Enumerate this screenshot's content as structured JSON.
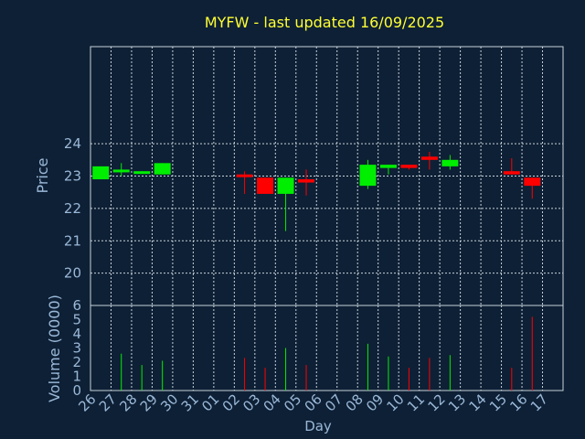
{
  "chart_data": {
    "type": "candlestick",
    "title": "MYFW - last updated 16/09/2025",
    "xlabel": "Day",
    "x": [
      "26",
      "27",
      "28",
      "29",
      "30",
      "31",
      "01",
      "02",
      "03",
      "04",
      "05",
      "06",
      "07",
      "08",
      "09",
      "10",
      "11",
      "12",
      "13",
      "14",
      "15",
      "16",
      "17"
    ],
    "price_panel": {
      "ylabel": "Price",
      "ylim": [
        19,
        27
      ],
      "yticks": [
        20,
        21,
        22,
        23,
        24
      ],
      "grid": true,
      "candles": [
        {
          "day": "26",
          "open": 22.9,
          "high": 23.3,
          "low": 22.9,
          "close": 23.3
        },
        {
          "day": "27",
          "open": 23.15,
          "high": 23.4,
          "low": 23.0,
          "close": 23.2
        },
        {
          "day": "28",
          "open": 23.1,
          "high": 23.15,
          "low": 23.1,
          "close": 23.15
        },
        {
          "day": "29",
          "open": 23.05,
          "high": 23.4,
          "low": 23.05,
          "close": 23.4
        },
        {
          "day": "02",
          "open": 23.05,
          "high": 23.15,
          "low": 22.45,
          "close": 23.0
        },
        {
          "day": "03",
          "open": 22.95,
          "high": 22.95,
          "low": 22.45,
          "close": 22.45
        },
        {
          "day": "04",
          "open": 22.45,
          "high": 22.95,
          "low": 21.3,
          "close": 22.95
        },
        {
          "day": "05",
          "open": 22.9,
          "high": 23.2,
          "low": 22.4,
          "close": 22.8
        },
        {
          "day": "08",
          "open": 22.7,
          "high": 23.5,
          "low": 22.6,
          "close": 23.35
        },
        {
          "day": "09",
          "open": 23.25,
          "high": 23.35,
          "low": 23.05,
          "close": 23.35
        },
        {
          "day": "10",
          "open": 23.35,
          "high": 23.35,
          "low": 23.2,
          "close": 23.25
        },
        {
          "day": "11",
          "open": 23.6,
          "high": 23.75,
          "low": 23.2,
          "close": 23.5
        },
        {
          "day": "12",
          "open": 23.3,
          "high": 23.65,
          "low": 23.2,
          "close": 23.5
        },
        {
          "day": "15",
          "open": 23.15,
          "high": 23.55,
          "low": 23.05,
          "close": 23.05
        },
        {
          "day": "16",
          "open": 22.95,
          "high": 22.95,
          "low": 22.3,
          "close": 22.7
        }
      ]
    },
    "volume_panel": {
      "ylabel": "Volume (0000)",
      "ylim": [
        0,
        6
      ],
      "yticks": [
        0,
        1,
        2,
        3,
        4,
        5,
        6
      ],
      "bars": [
        {
          "day": "27",
          "value": 2.6,
          "direction": "up"
        },
        {
          "day": "28",
          "value": 1.8,
          "direction": "up"
        },
        {
          "day": "29",
          "value": 2.1,
          "direction": "up"
        },
        {
          "day": "02",
          "value": 2.3,
          "direction": "down"
        },
        {
          "day": "03",
          "value": 1.6,
          "direction": "down"
        },
        {
          "day": "04",
          "value": 3.0,
          "direction": "up"
        },
        {
          "day": "05",
          "value": 1.8,
          "direction": "down"
        },
        {
          "day": "08",
          "value": 3.3,
          "direction": "up"
        },
        {
          "day": "09",
          "value": 2.4,
          "direction": "up"
        },
        {
          "day": "10",
          "value": 1.6,
          "direction": "down"
        },
        {
          "day": "11",
          "value": 2.3,
          "direction": "down"
        },
        {
          "day": "12",
          "value": 2.5,
          "direction": "up"
        },
        {
          "day": "15",
          "value": 1.6,
          "direction": "down"
        },
        {
          "day": "16",
          "value": 5.2,
          "direction": "down"
        }
      ]
    },
    "colors": {
      "up": "#00ee00",
      "down": "#ff0000",
      "background": "#0e2035",
      "grid": "#c8d2dc",
      "title": "#ffff33",
      "axis_text": "#9ab8d8"
    }
  }
}
